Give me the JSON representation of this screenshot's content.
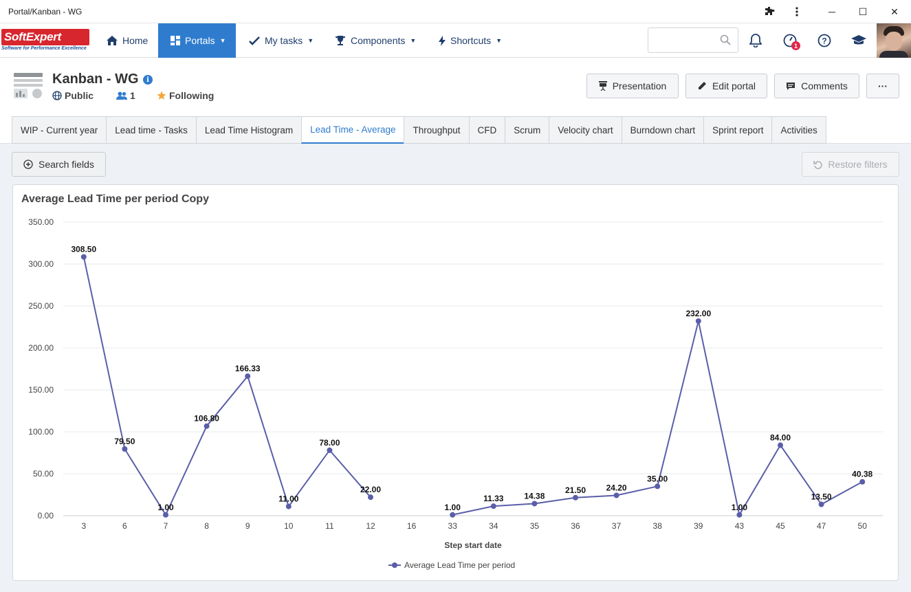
{
  "window": {
    "title": "Portal/Kanban - WG",
    "minimize": "─",
    "maximize": "☐",
    "close": "✕"
  },
  "nav": {
    "logo_text": "SoftExpert",
    "logo_sub": "Software for Performance Excellence",
    "items": [
      {
        "label": "Home"
      },
      {
        "label": "Portals"
      },
      {
        "label": "My tasks"
      },
      {
        "label": "Components"
      },
      {
        "label": "Shortcuts"
      }
    ],
    "search_value": "",
    "notification_badge": "1"
  },
  "portal": {
    "title": "Kanban - WG",
    "visibility": "Public",
    "members": "1",
    "following": "Following",
    "buttons": {
      "presentation": "Presentation",
      "edit": "Edit portal",
      "comments": "Comments",
      "more": "···"
    }
  },
  "tabs": [
    {
      "label": "WIP - Current year"
    },
    {
      "label": "Lead time - Tasks"
    },
    {
      "label": "Lead Time Histogram"
    },
    {
      "label": "Lead Time - Average"
    },
    {
      "label": "Throughput"
    },
    {
      "label": "CFD"
    },
    {
      "label": "Scrum"
    },
    {
      "label": "Velocity chart"
    },
    {
      "label": "Burndown chart"
    },
    {
      "label": "Sprint report"
    },
    {
      "label": "Activities"
    }
  ],
  "active_tab_index": 3,
  "toolbar": {
    "search_fields": "Search fields",
    "restore_filters": "Restore filters"
  },
  "colors": {
    "accent": "#2f7ccf",
    "series": "#5a5ea8"
  },
  "chart_data": {
    "type": "line",
    "title": "Average Lead Time per period Copy",
    "xlabel": "Step start date",
    "ylabel": "",
    "ylim": [
      0,
      350
    ],
    "yticks": [
      "0.00",
      "50.00",
      "100.00",
      "150.00",
      "200.00",
      "250.00",
      "300.00",
      "350.00"
    ],
    "categories": [
      "3",
      "6",
      "7",
      "8",
      "9",
      "10",
      "11",
      "12",
      "16",
      "33",
      "34",
      "35",
      "36",
      "37",
      "38",
      "39",
      "43",
      "45",
      "47",
      "50"
    ],
    "grid": true,
    "legend": "bottom",
    "series": [
      {
        "name": "Average Lead Time per period",
        "values": [
          308.5,
          79.5,
          1.0,
          106.8,
          166.33,
          11.0,
          78.0,
          22.0,
          null,
          1.0,
          11.33,
          14.38,
          21.5,
          24.2,
          35.0,
          232.0,
          1.0,
          84.0,
          13.5,
          40.38
        ],
        "labels": [
          "308.50",
          "79.50",
          "1.00",
          "106.80",
          "166.33",
          "11.00",
          "78.00",
          "22.00",
          null,
          "1.00",
          "11.33",
          "14.38",
          "21.50",
          "24.20",
          "35.00",
          "232.00",
          "1.00",
          "84.00",
          "13.50",
          "40.38"
        ]
      }
    ]
  }
}
